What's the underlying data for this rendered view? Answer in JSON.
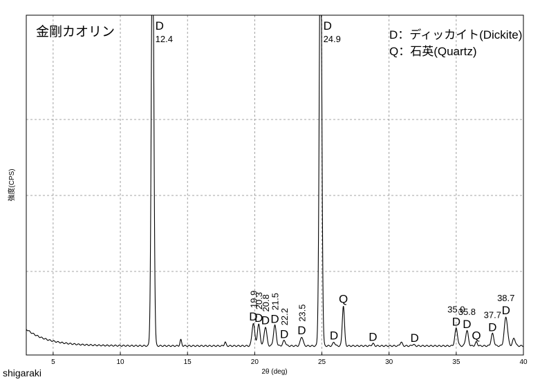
{
  "footer": "shigaraki",
  "chart_data": {
    "type": "line",
    "title": "金剛カオリン",
    "xlabel": "2θ (deg)",
    "ylabel": "強度(CPS)",
    "xlim": [
      3,
      40
    ],
    "x_ticks": [
      5,
      10,
      15,
      20,
      25,
      30,
      35,
      40
    ],
    "grid": true,
    "legend": [
      "D：ディッカイト(Dickite)",
      "Q：石英(Quartz)"
    ],
    "legend_position": "top-right",
    "y_unit_note": "relative intensity, 0 = baseline, 1.0 = dashed grid line below top",
    "series": [
      {
        "peaks": [
          {
            "x": 12.4,
            "height": 6.0,
            "width": 0.09
          },
          {
            "x": 14.5,
            "height": 0.08,
            "width": 0.06
          },
          {
            "x": 17.8,
            "height": 0.05,
            "width": 0.06
          },
          {
            "x": 19.9,
            "height": 0.3,
            "width": 0.1
          },
          {
            "x": 20.3,
            "height": 0.28,
            "width": 0.1
          },
          {
            "x": 20.8,
            "height": 0.25,
            "width": 0.1
          },
          {
            "x": 21.5,
            "height": 0.27,
            "width": 0.1
          },
          {
            "x": 22.2,
            "height": 0.07,
            "width": 0.1
          },
          {
            "x": 23.5,
            "height": 0.12,
            "width": 0.1
          },
          {
            "x": 24.9,
            "height": 6.0,
            "width": 0.09
          },
          {
            "x": 25.9,
            "height": 0.05,
            "width": 0.08
          },
          {
            "x": 26.6,
            "height": 0.53,
            "width": 0.08
          },
          {
            "x": 28.8,
            "height": 0.03,
            "width": 0.08
          },
          {
            "x": 30.9,
            "height": 0.05,
            "width": 0.08
          },
          {
            "x": 31.8,
            "height": 0.02,
            "width": 0.08
          },
          {
            "x": 35.0,
            "height": 0.23,
            "width": 0.1
          },
          {
            "x": 35.8,
            "height": 0.2,
            "width": 0.1
          },
          {
            "x": 36.5,
            "height": 0.05,
            "width": 0.08
          },
          {
            "x": 37.7,
            "height": 0.16,
            "width": 0.1
          },
          {
            "x": 38.7,
            "height": 0.38,
            "width": 0.12
          },
          {
            "x": 39.3,
            "height": 0.1,
            "width": 0.1
          }
        ]
      }
    ],
    "peak_labels": [
      {
        "x": 12.4,
        "text": "D",
        "value": "12.4",
        "style": "top"
      },
      {
        "x": 24.9,
        "text": "D",
        "value": "24.9",
        "style": "top"
      },
      {
        "x": 19.9,
        "text": "D",
        "value": "19.9",
        "style": "rotated"
      },
      {
        "x": 20.3,
        "text": "D",
        "value": "20.3",
        "style": "rotated"
      },
      {
        "x": 20.8,
        "text": "D",
        "value": "20.8",
        "style": "rotated"
      },
      {
        "x": 21.5,
        "text": "D",
        "value": "21.5",
        "style": "rotated"
      },
      {
        "x": 22.2,
        "text": "D",
        "value": "22.2",
        "style": "rotated"
      },
      {
        "x": 23.5,
        "text": "D",
        "value": "23.5",
        "style": "rotated"
      },
      {
        "x": 26.6,
        "text": "Q",
        "value": "",
        "style": "plain"
      },
      {
        "x": 25.9,
        "text": "D",
        "value": "",
        "style": "plain"
      },
      {
        "x": 28.8,
        "text": "D",
        "value": "",
        "style": "plain"
      },
      {
        "x": 31.9,
        "text": "D",
        "value": "",
        "style": "plain"
      },
      {
        "x": 35.0,
        "text": "D",
        "value": "35.0",
        "style": "above"
      },
      {
        "x": 35.8,
        "text": "D",
        "value": "35.8",
        "style": "above"
      },
      {
        "x": 36.5,
        "text": "Q",
        "value": "",
        "style": "plain"
      },
      {
        "x": 37.7,
        "text": "D",
        "value": "37.7",
        "style": "above"
      },
      {
        "x": 38.7,
        "text": "D",
        "value": "38.7",
        "style": "above"
      }
    ]
  }
}
